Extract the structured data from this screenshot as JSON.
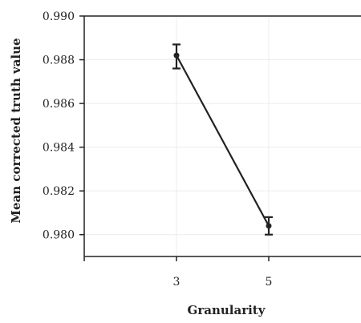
{
  "chart_data": {
    "type": "line",
    "title": "",
    "xlabel": "Granularity",
    "ylabel": "Mean corrected truth value",
    "x": [
      3,
      5
    ],
    "x_ticks": [
      "3",
      "5"
    ],
    "xlim": [
      1,
      7
    ],
    "ylim": [
      0.979,
      0.99
    ],
    "y_ticks": [
      "0.980",
      "0.982",
      "0.984",
      "0.986",
      "0.988",
      "0.990"
    ],
    "y_tick_values": [
      0.98,
      0.982,
      0.984,
      0.986,
      0.988,
      0.99
    ],
    "series": [
      {
        "values": [
          0.9882,
          0.9804
        ],
        "error_low": [
          0.9876,
          0.98
        ],
        "error_high": [
          0.9887,
          0.9808
        ],
        "color": "#222222"
      }
    ],
    "grid": true,
    "grid_color": "#ececec",
    "axis_color": "#222222"
  }
}
